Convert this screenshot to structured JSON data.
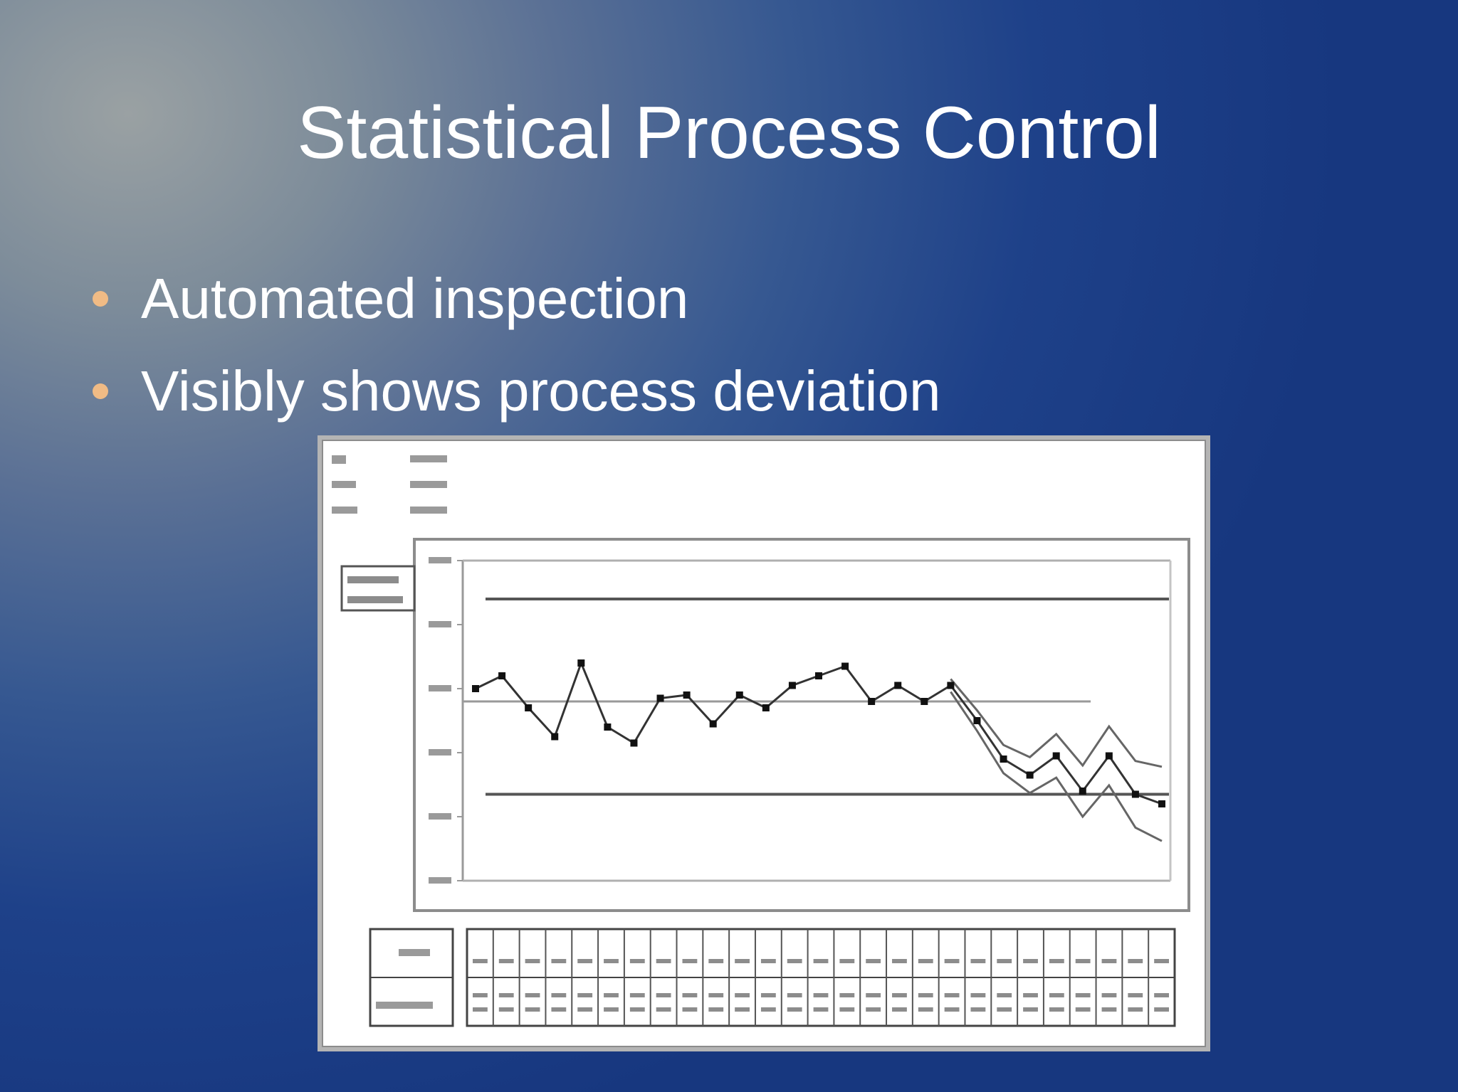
{
  "slide": {
    "title": "Statistical Process Control",
    "bullets": [
      "Automated inspection",
      "Visibly shows process deviation"
    ],
    "bullet_color": "#f0bb85"
  },
  "chart_data": {
    "type": "line",
    "title": "",
    "xlabel": "",
    "ylabel": "",
    "ylim": [
      0,
      500
    ],
    "y_ticks": [
      0,
      100,
      200,
      300,
      400,
      500
    ],
    "series": [
      {
        "values": [
          300,
          320,
          270,
          225,
          340,
          240,
          215,
          285,
          290,
          245,
          290,
          270,
          305,
          320,
          335,
          280,
          305,
          280,
          305,
          250,
          190,
          165,
          195,
          140,
          195,
          135,
          120
        ]
      }
    ],
    "center_line": 280,
    "control_limits": [
      440,
      135
    ],
    "colors": {
      "line": "#333333",
      "limit": "#555555",
      "center": "#9a9a9a",
      "band": "#666666"
    },
    "grid": false,
    "legend": "top-left"
  }
}
